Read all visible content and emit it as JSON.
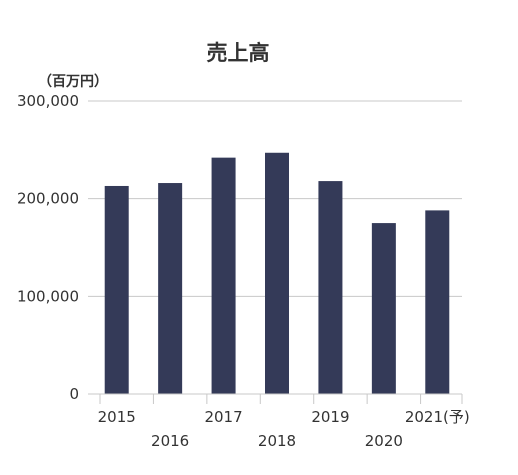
{
  "chart_data": {
    "type": "bar",
    "title": "売上高",
    "unit_label": "（百万円）",
    "categories": [
      "2015",
      "2016",
      "2017",
      "2018",
      "2019",
      "2020",
      "2021(予)"
    ],
    "values": [
      213000,
      216000,
      242000,
      247000,
      218000,
      175000,
      188000
    ],
    "ylim": [
      0,
      300000
    ],
    "yticks": [
      0,
      100000,
      200000,
      300000
    ],
    "ytick_labels": [
      "0",
      "100,000",
      "200,000",
      "300,000"
    ],
    "bar_color": "#343a58",
    "grid": true,
    "legend": "none"
  }
}
